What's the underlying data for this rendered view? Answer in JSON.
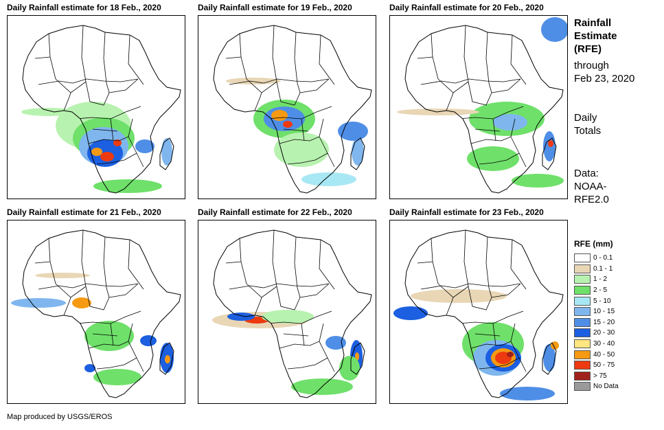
{
  "panels": [
    {
      "title": "Daily Rainfall estimate for 18 Feb., 2020",
      "rain_pattern": "central-southern-heavy"
    },
    {
      "title": "Daily Rainfall estimate for 19 Feb., 2020",
      "rain_pattern": "congo-madagascar"
    },
    {
      "title": "Daily Rainfall estimate for 20 Feb., 2020",
      "rain_pattern": "east-madagascar"
    },
    {
      "title": "Daily Rainfall estimate for 21 Feb., 2020",
      "rain_pattern": "gulf-guinea-madagascar"
    },
    {
      "title": "Daily Rainfall estimate for 22 Feb., 2020",
      "rain_pattern": "gulf-guinea-band"
    },
    {
      "title": "Daily Rainfall estimate for 23 Feb., 2020",
      "rain_pattern": "southern-heavy"
    }
  ],
  "side": {
    "heading_lines": [
      "Rainfall",
      "Estimate",
      "(RFE)"
    ],
    "through_lines": [
      "through",
      "Feb 23, 2020"
    ],
    "totals_lines": [
      "Daily",
      "Totals"
    ],
    "data_lines": [
      "Data:",
      "NOAA-",
      "RFE2.0"
    ]
  },
  "legend": {
    "title": "RFE (mm)",
    "items": [
      {
        "label": "0 - 0.1",
        "color": "#ffffff"
      },
      {
        "label": "0.1 - 1",
        "color": "#e8d6b5"
      },
      {
        "label": "1 - 2",
        "color": "#b8f2b0"
      },
      {
        "label": "2 - 5",
        "color": "#6fe06a"
      },
      {
        "label": "5 - 10",
        "color": "#a8e8f4"
      },
      {
        "label": "10 - 15",
        "color": "#7fb6ee"
      },
      {
        "label": "15 - 20",
        "color": "#4f8ee6"
      },
      {
        "label": "20 - 30",
        "color": "#1c5fe0"
      },
      {
        "label": "30 - 40",
        "color": "#ffe680"
      },
      {
        "label": "40 - 50",
        "color": "#f59a12"
      },
      {
        "label": "50 - 75",
        "color": "#ee3a10"
      },
      {
        "label": "> 75",
        "color": "#a0211c"
      },
      {
        "label": "No Data",
        "color": "#9a9a9a"
      }
    ]
  },
  "footer": "Map produced by USGS/EROS"
}
